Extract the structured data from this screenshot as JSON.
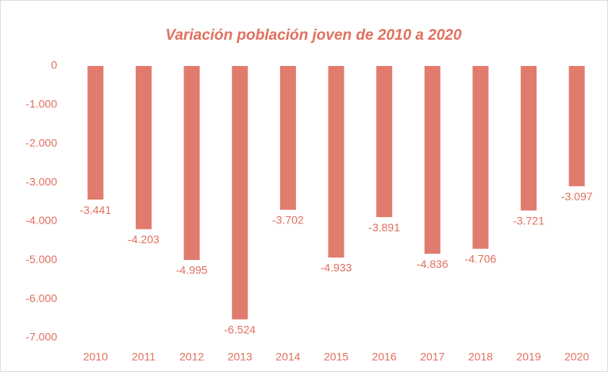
{
  "chart_data": {
    "type": "bar",
    "title": "Variación población joven de 2010  a 2020",
    "categories": [
      "2010",
      "2011",
      "2012",
      "2013",
      "2014",
      "2015",
      "2016",
      "2017",
      "2018",
      "2019",
      "2020"
    ],
    "values": [
      -3441,
      -4203,
      -4995,
      -6524,
      -3702,
      -4933,
      -3891,
      -4836,
      -4706,
      -3721,
      -3097
    ],
    "value_labels": [
      "-3.441",
      "-4.203",
      "-4.995",
      "-6.524",
      "-3.702",
      "-4.933",
      "-3.891",
      "-4.836",
      "-4.706",
      "-3.721",
      "-3.097"
    ],
    "color": "#e07b6e",
    "ylim": [
      -7000,
      0
    ],
    "yticks": [
      0,
      {
        "value": -1000,
        "label": "-1.000"
      },
      {
        "value": -2000,
        "label": "-2.000"
      },
      {
        "value": -3000,
        "label": "-3.000"
      },
      {
        "value": -4000,
        "label": "-4.000"
      },
      {
        "value": -5000,
        "label": "-5.000"
      },
      {
        "value": -6000,
        "label": "-6.000"
      },
      {
        "value": -7000,
        "label": "-7.000"
      }
    ],
    "grid": false
  }
}
